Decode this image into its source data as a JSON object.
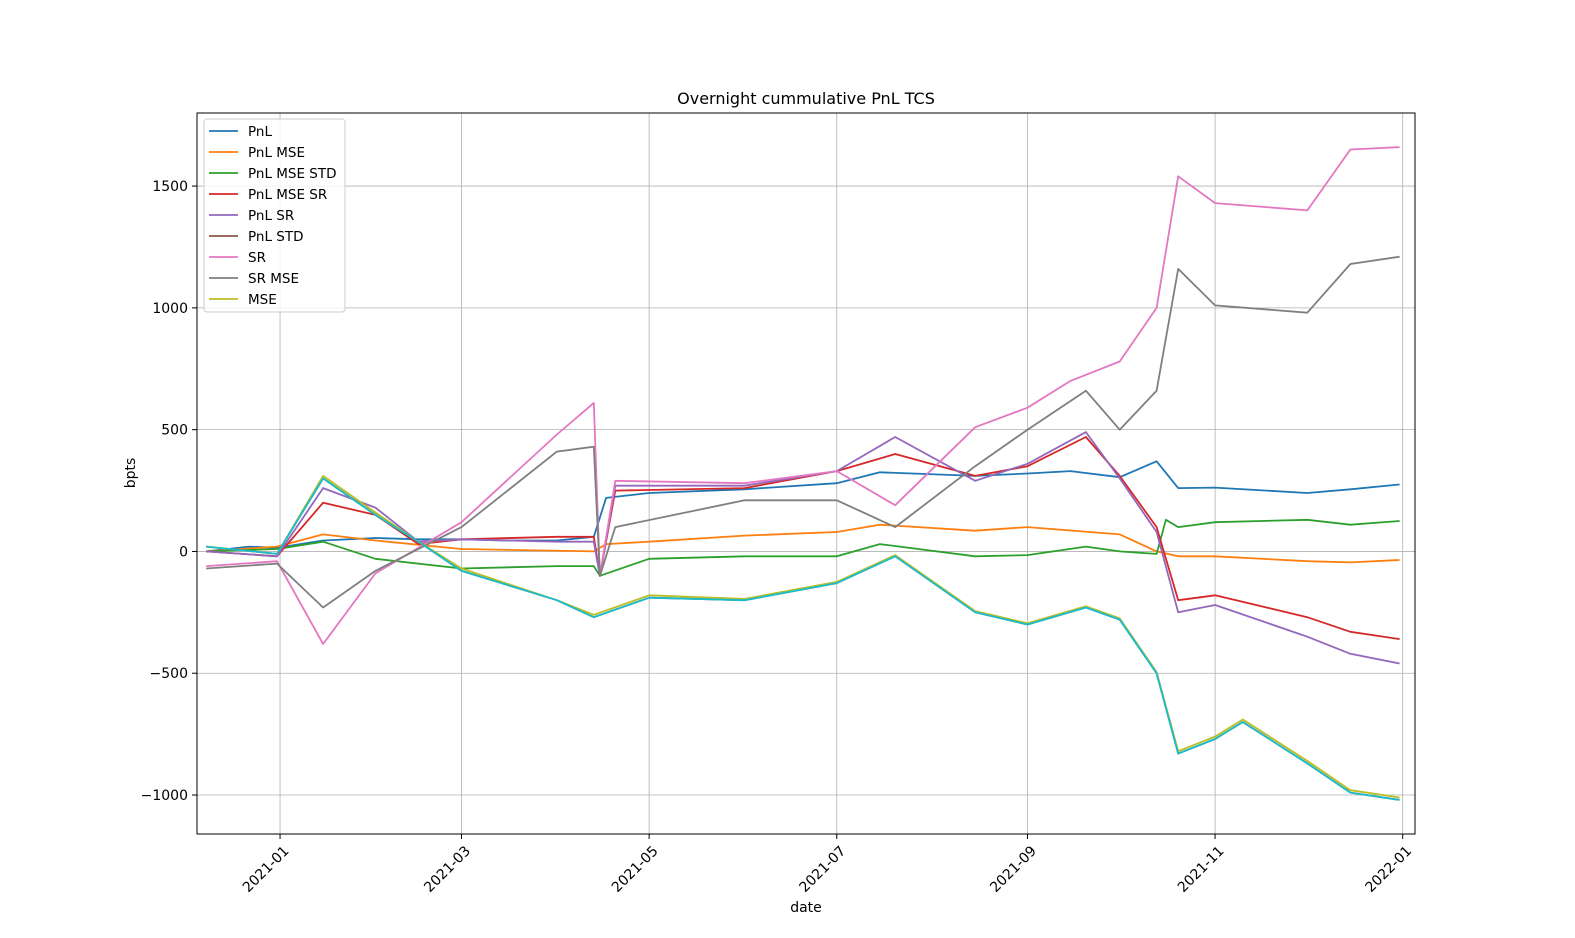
{
  "chart_data": {
    "type": "line",
    "title": "Overnight cummulative PnL TCS",
    "xlabel": "date",
    "ylabel": "bpts",
    "x_axis": "date",
    "xlim": [
      "2020-12-05",
      "2022-01-05"
    ],
    "ylim": [
      -1160,
      1800
    ],
    "grid": true,
    "legend_position": "top-left",
    "x_ticks": [
      "2021-01",
      "2021-03",
      "2021-05",
      "2021-07",
      "2021-09",
      "2021-11",
      "2022-01"
    ],
    "x_tick_dates": [
      "2021-01-01",
      "2021-03-01",
      "2021-05-01",
      "2021-07-01",
      "2021-09-01",
      "2021-11-01",
      "2022-01-01"
    ],
    "y_ticks": [
      -1000,
      -500,
      0,
      500,
      1000,
      1500
    ],
    "y_tick_labels": [
      "−1000",
      "−500",
      "0",
      "500",
      "1000",
      "1500"
    ],
    "series": [
      {
        "name": "PnL",
        "color": "#1f77b4",
        "points": [
          [
            "2020-12-08",
            0
          ],
          [
            "2020-12-22",
            20
          ],
          [
            "2020-12-31",
            15
          ],
          [
            "2021-01-15",
            45
          ],
          [
            "2021-02-01",
            55
          ],
          [
            "2021-02-15",
            50
          ],
          [
            "2021-03-01",
            50
          ],
          [
            "2021-03-15",
            45
          ],
          [
            "2021-04-01",
            45
          ],
          [
            "2021-04-13",
            60
          ],
          [
            "2021-04-17",
            220
          ],
          [
            "2021-05-01",
            240
          ],
          [
            "2021-06-01",
            255
          ],
          [
            "2021-07-01",
            280
          ],
          [
            "2021-07-15",
            325
          ],
          [
            "2021-08-15",
            310
          ],
          [
            "2021-09-01",
            320
          ],
          [
            "2021-09-15",
            330
          ],
          [
            "2021-10-01",
            305
          ],
          [
            "2021-10-13",
            370
          ],
          [
            "2021-10-20",
            260
          ],
          [
            "2021-11-01",
            262
          ],
          [
            "2021-12-01",
            240
          ],
          [
            "2021-12-15",
            255
          ],
          [
            "2021-12-31",
            275
          ]
        ]
      },
      {
        "name": "PnL MSE",
        "color": "#ff7f0e",
        "points": [
          [
            "2020-12-08",
            0
          ],
          [
            "2020-12-31",
            20
          ],
          [
            "2021-01-15",
            70
          ],
          [
            "2021-02-01",
            45
          ],
          [
            "2021-03-01",
            10
          ],
          [
            "2021-04-13",
            0
          ],
          [
            "2021-04-17",
            30
          ],
          [
            "2021-05-01",
            40
          ],
          [
            "2021-06-01",
            65
          ],
          [
            "2021-07-01",
            80
          ],
          [
            "2021-07-15",
            110
          ],
          [
            "2021-08-15",
            85
          ],
          [
            "2021-09-01",
            100
          ],
          [
            "2021-10-01",
            70
          ],
          [
            "2021-10-13",
            0
          ],
          [
            "2021-10-20",
            -20
          ],
          [
            "2021-11-01",
            -20
          ],
          [
            "2021-12-01",
            -40
          ],
          [
            "2021-12-15",
            -45
          ],
          [
            "2021-12-31",
            -35
          ]
        ]
      },
      {
        "name": "PnL MSE STD",
        "color": "#2ca02c",
        "points": [
          [
            "2020-12-08",
            0
          ],
          [
            "2020-12-31",
            10
          ],
          [
            "2021-01-15",
            40
          ],
          [
            "2021-02-01",
            -30
          ],
          [
            "2021-03-01",
            -70
          ],
          [
            "2021-04-01",
            -60
          ],
          [
            "2021-04-13",
            -60
          ],
          [
            "2021-04-15",
            -100
          ],
          [
            "2021-05-01",
            -30
          ],
          [
            "2021-06-01",
            -20
          ],
          [
            "2021-07-01",
            -20
          ],
          [
            "2021-07-15",
            30
          ],
          [
            "2021-08-15",
            -20
          ],
          [
            "2021-09-01",
            -15
          ],
          [
            "2021-09-20",
            20
          ],
          [
            "2021-10-01",
            0
          ],
          [
            "2021-10-13",
            -10
          ],
          [
            "2021-10-16",
            130
          ],
          [
            "2021-10-20",
            100
          ],
          [
            "2021-11-01",
            120
          ],
          [
            "2021-12-01",
            130
          ],
          [
            "2021-12-15",
            110
          ],
          [
            "2021-12-31",
            125
          ]
        ]
      },
      {
        "name": "PnL MSE SR",
        "color": "#d62728",
        "points": [
          [
            "2020-12-08",
            0
          ],
          [
            "2020-12-31",
            -20
          ],
          [
            "2021-01-15",
            200
          ],
          [
            "2021-02-01",
            150
          ],
          [
            "2021-02-15",
            30
          ],
          [
            "2021-03-01",
            50
          ],
          [
            "2021-04-01",
            60
          ],
          [
            "2021-04-13",
            60
          ],
          [
            "2021-04-15",
            -100
          ],
          [
            "2021-04-20",
            250
          ],
          [
            "2021-06-01",
            260
          ],
          [
            "2021-07-01",
            330
          ],
          [
            "2021-07-20",
            400
          ],
          [
            "2021-08-15",
            310
          ],
          [
            "2021-09-01",
            350
          ],
          [
            "2021-09-20",
            470
          ],
          [
            "2021-10-01",
            310
          ],
          [
            "2021-10-13",
            100
          ],
          [
            "2021-10-20",
            -200
          ],
          [
            "2021-11-01",
            -180
          ],
          [
            "2021-12-01",
            -270
          ],
          [
            "2021-12-15",
            -330
          ],
          [
            "2021-12-31",
            -360
          ]
        ]
      },
      {
        "name": "PnL SR",
        "color": "#9467bd",
        "points": [
          [
            "2020-12-08",
            0
          ],
          [
            "2020-12-31",
            -20
          ],
          [
            "2021-01-15",
            260
          ],
          [
            "2021-02-01",
            180
          ],
          [
            "2021-02-15",
            40
          ],
          [
            "2021-03-01",
            50
          ],
          [
            "2021-04-01",
            40
          ],
          [
            "2021-04-13",
            40
          ],
          [
            "2021-04-15",
            -100
          ],
          [
            "2021-04-20",
            270
          ],
          [
            "2021-06-01",
            270
          ],
          [
            "2021-07-01",
            330
          ],
          [
            "2021-07-20",
            470
          ],
          [
            "2021-08-15",
            290
          ],
          [
            "2021-09-01",
            360
          ],
          [
            "2021-09-20",
            490
          ],
          [
            "2021-10-01",
            300
          ],
          [
            "2021-10-13",
            80
          ],
          [
            "2021-10-20",
            -250
          ],
          [
            "2021-11-01",
            -220
          ],
          [
            "2021-12-01",
            -350
          ],
          [
            "2021-12-15",
            -420
          ],
          [
            "2021-12-31",
            -460
          ]
        ]
      },
      {
        "name": "PnL STD",
        "color": "#8c564b",
        "points": [
          [
            "2020-12-08",
            20
          ],
          [
            "2020-12-31",
            -10
          ],
          [
            "2021-01-15",
            300
          ],
          [
            "2021-02-01",
            150
          ],
          [
            "2021-02-15",
            40
          ],
          [
            "2021-03-01",
            -80
          ],
          [
            "2021-04-01",
            -200
          ],
          [
            "2021-04-13",
            -270
          ],
          [
            "2021-05-01",
            -190
          ],
          [
            "2021-06-01",
            -200
          ],
          [
            "2021-07-01",
            -130
          ],
          [
            "2021-07-20",
            -20
          ],
          [
            "2021-08-15",
            -250
          ],
          [
            "2021-09-01",
            -300
          ],
          [
            "2021-09-20",
            -230
          ],
          [
            "2021-10-01",
            -280
          ],
          [
            "2021-10-13",
            -500
          ],
          [
            "2021-10-20",
            -830
          ],
          [
            "2021-11-01",
            -770
          ],
          [
            "2021-11-10",
            -700
          ],
          [
            "2021-12-01",
            -870
          ],
          [
            "2021-12-15",
            -990
          ],
          [
            "2021-12-31",
            -1020
          ]
        ]
      },
      {
        "name": "SR",
        "color": "#e377c2",
        "points": [
          [
            "2020-12-08",
            -60
          ],
          [
            "2020-12-31",
            -40
          ],
          [
            "2021-01-15",
            -380
          ],
          [
            "2021-02-01",
            -90
          ],
          [
            "2021-03-01",
            120
          ],
          [
            "2021-04-01",
            480
          ],
          [
            "2021-04-13",
            610
          ],
          [
            "2021-04-15",
            -100
          ],
          [
            "2021-04-20",
            290
          ],
          [
            "2021-06-01",
            280
          ],
          [
            "2021-07-01",
            330
          ],
          [
            "2021-07-20",
            190
          ],
          [
            "2021-08-15",
            510
          ],
          [
            "2021-09-01",
            590
          ],
          [
            "2021-09-15",
            700
          ],
          [
            "2021-10-01",
            780
          ],
          [
            "2021-10-13",
            1000
          ],
          [
            "2021-10-20",
            1540
          ],
          [
            "2021-11-01",
            1430
          ],
          [
            "2021-12-01",
            1400
          ],
          [
            "2021-12-15",
            1650
          ],
          [
            "2021-12-31",
            1660
          ]
        ]
      },
      {
        "name": "SR MSE",
        "color": "#7f7f7f",
        "points": [
          [
            "2020-12-08",
            -70
          ],
          [
            "2020-12-31",
            -50
          ],
          [
            "2021-01-15",
            -230
          ],
          [
            "2021-02-01",
            -80
          ],
          [
            "2021-03-01",
            100
          ],
          [
            "2021-04-01",
            410
          ],
          [
            "2021-04-13",
            430
          ],
          [
            "2021-04-15",
            -100
          ],
          [
            "2021-04-20",
            100
          ],
          [
            "2021-06-01",
            210
          ],
          [
            "2021-07-01",
            210
          ],
          [
            "2021-07-20",
            100
          ],
          [
            "2021-08-15",
            350
          ],
          [
            "2021-09-01",
            500
          ],
          [
            "2021-09-20",
            660
          ],
          [
            "2021-10-01",
            500
          ],
          [
            "2021-10-13",
            660
          ],
          [
            "2021-10-20",
            1160
          ],
          [
            "2021-11-01",
            1010
          ],
          [
            "2021-12-01",
            980
          ],
          [
            "2021-12-15",
            1180
          ],
          [
            "2021-12-31",
            1210
          ]
        ]
      },
      {
        "name": "MSE",
        "color": "#bcbd22",
        "points": [
          [
            "2020-12-08",
            20
          ],
          [
            "2020-12-31",
            -10
          ],
          [
            "2021-01-15",
            310
          ],
          [
            "2021-02-01",
            160
          ],
          [
            "2021-02-15",
            40
          ],
          [
            "2021-03-01",
            -70
          ],
          [
            "2021-04-01",
            -200
          ],
          [
            "2021-04-13",
            -260
          ],
          [
            "2021-05-01",
            -180
          ],
          [
            "2021-06-01",
            -195
          ],
          [
            "2021-07-01",
            -125
          ],
          [
            "2021-07-20",
            -15
          ],
          [
            "2021-08-15",
            -245
          ],
          [
            "2021-09-01",
            -295
          ],
          [
            "2021-09-20",
            -225
          ],
          [
            "2021-10-01",
            -275
          ],
          [
            "2021-10-13",
            -495
          ],
          [
            "2021-10-20",
            -820
          ],
          [
            "2021-11-01",
            -760
          ],
          [
            "2021-11-10",
            -690
          ],
          [
            "2021-12-01",
            -860
          ],
          [
            "2021-12-15",
            -980
          ],
          [
            "2021-12-31",
            -1010
          ]
        ]
      },
      {
        "color": "#17becf",
        "points": [
          [
            "2020-12-08",
            20
          ],
          [
            "2020-12-31",
            -10
          ],
          [
            "2021-01-15",
            300
          ],
          [
            "2021-02-01",
            150
          ],
          [
            "2021-02-15",
            40
          ],
          [
            "2021-03-01",
            -80
          ],
          [
            "2021-04-01",
            -200
          ],
          [
            "2021-04-13",
            -270
          ],
          [
            "2021-05-01",
            -190
          ],
          [
            "2021-06-01",
            -200
          ],
          [
            "2021-07-01",
            -130
          ],
          [
            "2021-07-20",
            -20
          ],
          [
            "2021-08-15",
            -250
          ],
          [
            "2021-09-01",
            -300
          ],
          [
            "2021-09-20",
            -230
          ],
          [
            "2021-10-01",
            -280
          ],
          [
            "2021-10-13",
            -500
          ],
          [
            "2021-10-20",
            -830
          ],
          [
            "2021-11-01",
            -770
          ],
          [
            "2021-11-10",
            -700
          ],
          [
            "2021-12-01",
            -870
          ],
          [
            "2021-12-15",
            -990
          ],
          [
            "2021-12-31",
            -1020
          ]
        ]
      }
    ]
  }
}
